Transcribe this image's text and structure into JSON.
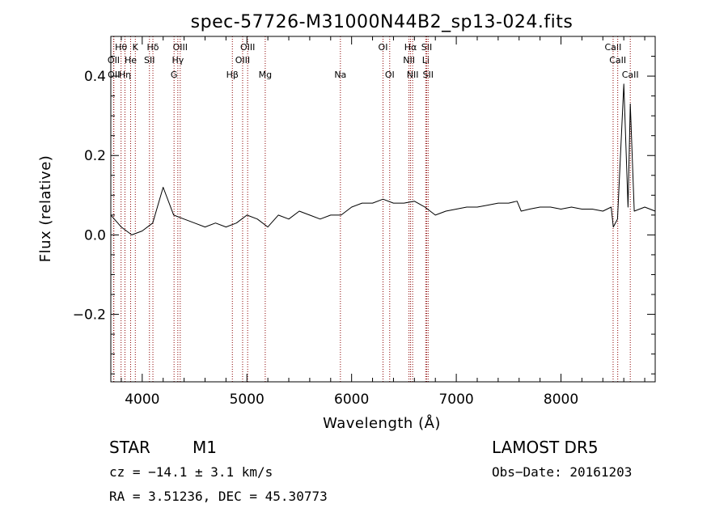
{
  "chart_data": {
    "type": "line",
    "title": "spec-57726-M31000N44B2_sp13-024.fits",
    "xlabel": "Wavelength (Å)",
    "ylabel": "Flux (relative)",
    "xlim": [
      3700,
      8900
    ],
    "ylim": [
      -0.37,
      0.5
    ],
    "x_ticks": [
      4000,
      5000,
      6000,
      7000,
      8000
    ],
    "x_tick_labels": [
      "4000",
      "5000",
      "6000",
      "7000",
      "8000"
    ],
    "y_ticks": [
      -0.2,
      0.0,
      0.2,
      0.4
    ],
    "y_tick_labels": [
      "−0.2",
      "0.0",
      "0.2",
      "0.4"
    ],
    "grid": false,
    "series": [
      {
        "color": "#000000",
        "x": [
          3700,
          3800,
          3900,
          4000,
          4100,
          4200,
          4300,
          4400,
          4500,
          4600,
          4700,
          4800,
          4900,
          5000,
          5100,
          5200,
          5300,
          5400,
          5500,
          5600,
          5700,
          5800,
          5900,
          6000,
          6100,
          6200,
          6300,
          6400,
          6500,
          6600,
          6700,
          6800,
          6900,
          7000,
          7100,
          7200,
          7300,
          7400,
          7500,
          7580,
          7620,
          7700,
          7800,
          7900,
          8000,
          8100,
          8200,
          8300,
          8400,
          8480,
          8500,
          8540,
          8600,
          8640,
          8662,
          8700,
          8800,
          8900
        ],
        "y": [
          0.05,
          0.02,
          0.0,
          0.01,
          0.03,
          0.12,
          0.05,
          0.04,
          0.03,
          0.02,
          0.03,
          0.02,
          0.03,
          0.05,
          0.04,
          0.02,
          0.05,
          0.04,
          0.06,
          0.05,
          0.04,
          0.05,
          0.05,
          0.07,
          0.08,
          0.08,
          0.09,
          0.08,
          0.08,
          0.085,
          0.07,
          0.05,
          0.06,
          0.065,
          0.07,
          0.07,
          0.075,
          0.08,
          0.08,
          0.085,
          0.06,
          0.065,
          0.07,
          0.07,
          0.065,
          0.07,
          0.065,
          0.065,
          0.06,
          0.07,
          0.02,
          0.04,
          0.38,
          0.07,
          0.33,
          0.06,
          0.07,
          0.06
        ]
      }
    ],
    "lines": [
      {
        "name": "Hθ",
        "x": 3798,
        "row": 0
      },
      {
        "name": "K",
        "x": 3934,
        "row": 0
      },
      {
        "name": "Hδ",
        "x": 4102,
        "row": 0
      },
      {
        "name": "OIII",
        "x": 4363,
        "row": 0
      },
      {
        "name": "OIII",
        "x": 5007,
        "row": 0
      },
      {
        "name": "OI",
        "x": 6300,
        "row": 0
      },
      {
        "name": "Hα",
        "x": 6563,
        "row": 0
      },
      {
        "name": "SII",
        "x": 6717,
        "row": 0
      },
      {
        "name": "CaII",
        "x": 8498,
        "row": 0
      },
      {
        "name": "OII",
        "x": 3727,
        "row": 1
      },
      {
        "name": "He",
        "x": 3889,
        "row": 1
      },
      {
        "name": "SII",
        "x": 4069,
        "row": 1
      },
      {
        "name": "Hγ",
        "x": 4340,
        "row": 1
      },
      {
        "name": "OIII",
        "x": 4959,
        "row": 1
      },
      {
        "name": "Na",
        "x": 5893,
        "row": 2
      },
      {
        "name": "NII",
        "x": 6548,
        "row": 1
      },
      {
        "name": "Li",
        "x": 6708,
        "row": 1
      },
      {
        "name": "CaII",
        "x": 8542,
        "row": 1
      },
      {
        "name": "OI",
        "x": 6364,
        "row": 2
      },
      {
        "name": "NII",
        "x": 6583,
        "row": 2
      },
      {
        "name": "SII",
        "x": 6731,
        "row": 2
      },
      {
        "name": "CaII",
        "x": 8662,
        "row": 2
      },
      {
        "name": "Hβ",
        "x": 4861,
        "row": 2
      },
      {
        "name": "Mg",
        "x": 5175,
        "row": 2
      },
      {
        "name": "G",
        "x": 4304,
        "row": 2
      },
      {
        "name": "OII",
        "x": 3729,
        "row": 2
      },
      {
        "name": "Hη",
        "x": 3835,
        "row": 2
      }
    ]
  },
  "info": {
    "object_class": "STAR",
    "subclass": "M1",
    "survey": "LAMOST DR5",
    "cz": "cz = −14.1 ± 3.1 km/s",
    "obs_date": "Obs−Date: 20161203",
    "coords": "RA =    3.51236, DEC =  45.30773"
  }
}
